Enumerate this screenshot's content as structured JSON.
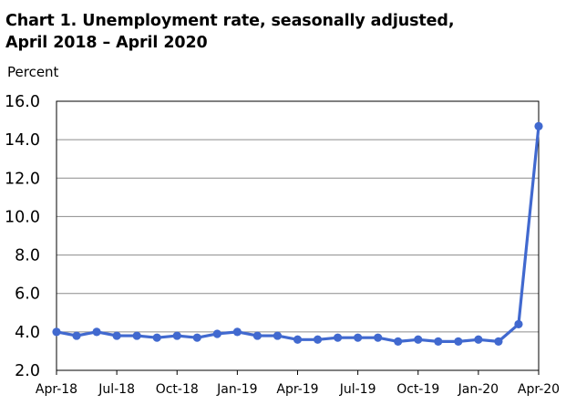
{
  "title_line1": "Chart 1. Unemployment rate, seasonally adjusted,",
  "title_line2": "April 2018 – April 2020",
  "chart_data": {
    "type": "line",
    "title": "Chart 1. Unemployment rate, seasonally adjusted, April 2018 – April 2020",
    "ylabel": "Percent",
    "xlabel": "",
    "ylim": [
      2.0,
      16.0
    ],
    "yticks": [
      "2.0",
      "4.0",
      "6.0",
      "8.0",
      "10.0",
      "12.0",
      "14.0",
      "16.0"
    ],
    "x": [
      "Apr-18",
      "May-18",
      "Jun-18",
      "Jul-18",
      "Aug-18",
      "Sep-18",
      "Oct-18",
      "Nov-18",
      "Dec-18",
      "Jan-19",
      "Feb-19",
      "Mar-19",
      "Apr-19",
      "May-19",
      "Jun-19",
      "Jul-19",
      "Aug-19",
      "Sep-19",
      "Oct-19",
      "Nov-19",
      "Dec-19",
      "Jan-20",
      "Feb-20",
      "Mar-20",
      "Apr-20"
    ],
    "x_tick_labels": [
      "Apr-18",
      "Jul-18",
      "Oct-18",
      "Jan-19",
      "Apr-19",
      "Jul-19",
      "Oct-19",
      "Jan-20",
      "Apr-20"
    ],
    "series": [
      {
        "values": [
          4.0,
          3.8,
          4.0,
          3.8,
          3.8,
          3.7,
          3.8,
          3.7,
          3.9,
          4.0,
          3.8,
          3.8,
          3.6,
          3.6,
          3.7,
          3.7,
          3.7,
          3.5,
          3.6,
          3.5,
          3.5,
          3.6,
          3.5,
          4.4,
          14.7
        ]
      }
    ],
    "grid": true,
    "legend": "none",
    "colors": {
      "line": "#4169cf",
      "grid": "#8c8c8c",
      "axis": "#000000"
    }
  }
}
